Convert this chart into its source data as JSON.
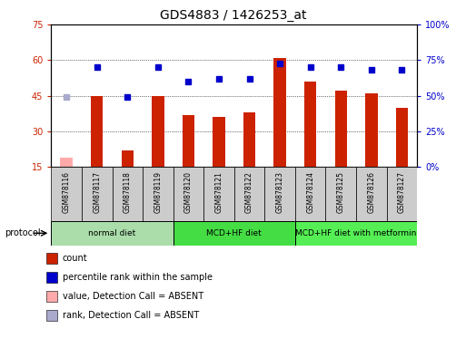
{
  "title": "GDS4883 / 1426253_at",
  "samples": [
    "GSM878116",
    "GSM878117",
    "GSM878118",
    "GSM878119",
    "GSM878120",
    "GSM878121",
    "GSM878122",
    "GSM878123",
    "GSM878124",
    "GSM878125",
    "GSM878126",
    "GSM878127"
  ],
  "bar_values": [
    19,
    45,
    22,
    45,
    37,
    36,
    38,
    61,
    51,
    47,
    46,
    40
  ],
  "bar_absent": [
    true,
    false,
    false,
    false,
    false,
    false,
    false,
    false,
    false,
    false,
    false,
    false
  ],
  "dot_values_left_scale": [
    44.5,
    57,
    44.5,
    57,
    51,
    52,
    52,
    58.5,
    57,
    57,
    56,
    56
  ],
  "dot_absent": [
    true,
    false,
    false,
    false,
    false,
    false,
    false,
    false,
    false,
    false,
    false,
    false
  ],
  "ylim_left": [
    15,
    75
  ],
  "ylim_right": [
    0,
    100
  ],
  "yticks_left": [
    15,
    30,
    45,
    60,
    75
  ],
  "yticks_right": [
    0,
    25,
    50,
    75,
    100
  ],
  "ytick_labels_right": [
    "0%",
    "25%",
    "50%",
    "75%",
    "100%"
  ],
  "bar_color": "#cc2200",
  "bar_absent_color": "#ffaaaa",
  "dot_color": "#0000cc",
  "dot_absent_color": "#aaaacc",
  "grid_color": "#000000",
  "protocol_groups": [
    {
      "label": "normal diet",
      "start": 0,
      "end": 3,
      "color": "#aaddaa"
    },
    {
      "label": "MCD+HF diet",
      "start": 4,
      "end": 7,
      "color": "#44dd44"
    },
    {
      "label": "MCD+HF diet with metformin",
      "start": 8,
      "end": 11,
      "color": "#55ee55"
    }
  ],
  "legend_items": [
    {
      "label": "count",
      "color": "#cc2200"
    },
    {
      "label": "percentile rank within the sample",
      "color": "#0000cc"
    },
    {
      "label": "value, Detection Call = ABSENT",
      "color": "#ffaaaa"
    },
    {
      "label": "rank, Detection Call = ABSENT",
      "color": "#aaaacc"
    }
  ],
  "bar_width": 0.4,
  "dot_marker_size": 5,
  "xticklabel_bg": "#cccccc",
  "xticklabel_fontsize": 5.5,
  "protocol_fontsize": 6.5,
  "legend_fontsize": 7,
  "title_fontsize": 10
}
